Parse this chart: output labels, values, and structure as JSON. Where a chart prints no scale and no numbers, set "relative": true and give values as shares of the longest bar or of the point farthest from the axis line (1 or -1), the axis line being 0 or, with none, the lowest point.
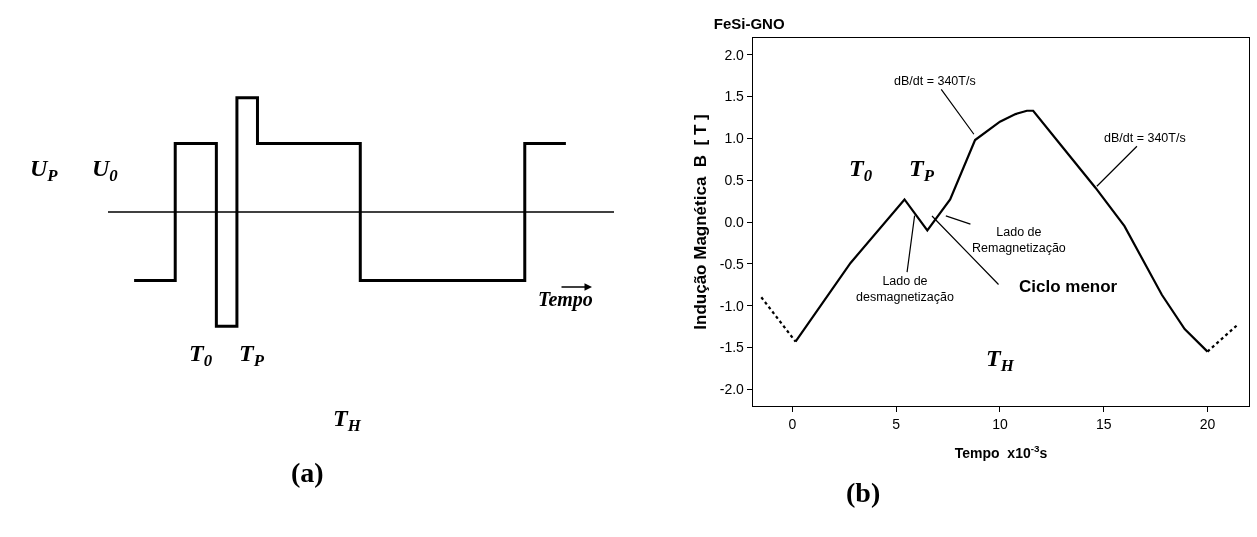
{
  "chart_data": [
    {
      "type": "step",
      "relative": true,
      "color": "#000000",
      "xlabel": "Tempo",
      "categories": [
        null,
        null,
        null,
        null,
        null,
        null,
        null,
        null,
        null,
        null,
        null,
        null,
        null,
        null,
        null,
        null,
        null,
        null,
        null,
        null,
        null,
        null
      ],
      "values": [
        -0.6,
        -0.6,
        0.6,
        0.6,
        -1,
        1,
        0.6,
        0.6,
        0.6,
        0.6,
        0.6,
        -0.6,
        -0.6,
        -0.6,
        -0.6,
        -0.6,
        -0.6,
        -0.6,
        -0.6,
        0.6,
        0.6,
        0.6
      ],
      "annotations": [
        "U$_{P}$",
        "U$_{0}$",
        "T$_{0}$",
        "T$_{P}$",
        "T$_{H}$",
        "(a)"
      ]
    },
    {
      "type": "line",
      "title": "FeSi-GNO",
      "xlabel": "Tempo  x10$^{-3}$s",
      "ylabel": "Indução Magnética  B  [ T ]",
      "xlim": [
        -1.9,
        22
      ],
      "ylim": [
        -2.2,
        2.2
      ],
      "xticks": [
        0,
        5,
        10,
        15,
        20
      ],
      "yticks": [
        {
          "value": -2,
          "label": "-2.0"
        },
        {
          "value": -1.5,
          "label": "-1.5"
        },
        {
          "value": -1,
          "label": "-1.0"
        },
        {
          "value": -0.5,
          "label": "-0.5"
        },
        {
          "value": 0,
          "label": "0.0"
        },
        {
          "value": 0.5,
          "label": "0.5"
        },
        {
          "value": 1,
          "label": "1.0"
        },
        {
          "value": 1.5,
          "label": "1.5"
        },
        {
          "value": 2,
          "label": "2.0"
        }
      ],
      "series": [
        {
          "color": "#000000",
          "line_style": "solid",
          "x": [
            0.15,
            2.8,
            5.4,
            6.5,
            7.6,
            8.8,
            10,
            10.75,
            11.3,
            11.6,
            13,
            14.6,
            16,
            17.8,
            18.9,
            20
          ],
          "values": [
            -1.43,
            -0.49,
            0.27,
            -0.1,
            0.27,
            0.98,
            1.2,
            1.29,
            1.33,
            1.33,
            0.9,
            0.41,
            -0.05,
            -0.87,
            -1.28,
            -1.55
          ]
        },
        {
          "color": "#000000",
          "line_style": "dotted",
          "x": [
            -1.5,
            0.15
          ],
          "values": [
            -0.9,
            -1.43
          ]
        },
        {
          "color": "#000000",
          "line_style": "dotted",
          "x": [
            20,
            21.4
          ],
          "values": [
            -1.55,
            -1.24
          ]
        }
      ],
      "annotations": [
        "T$_{0}$",
        "T$_{P}$",
        "T$_{H}$",
        {
          "text": "dB/dt = 340T/s",
          "x": 8.8,
          "y": 1.03
        },
        {
          "text": "dB/dt = 340T/s",
          "x": 14.6,
          "y": 0.41
        },
        {
          "text": "Lado de\nRemagnetização",
          "x": 7.3,
          "y": 0.08
        },
        {
          "text": "Lado de\ndesmagnetização",
          "x": 5.9,
          "y": 0.1
        },
        "Ciclo menor",
        "(b)"
      ]
    }
  ]
}
